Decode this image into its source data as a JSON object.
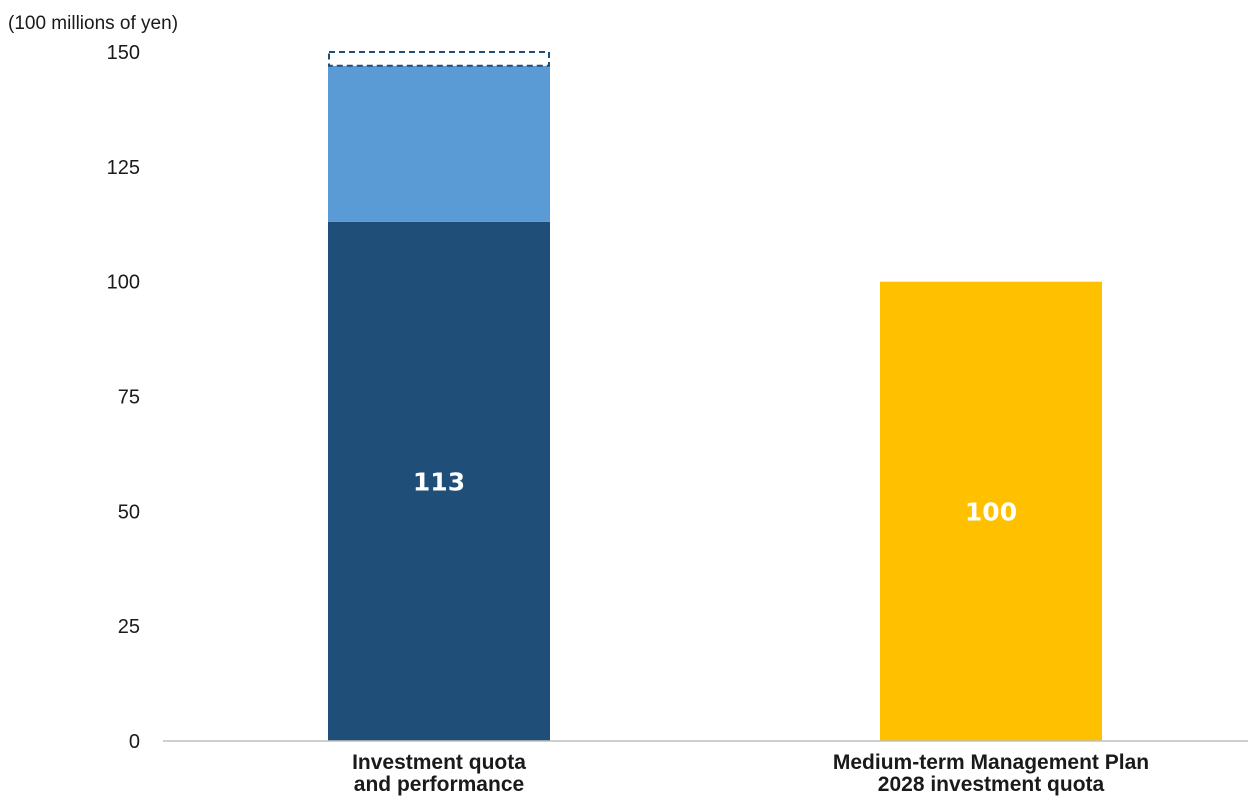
{
  "chart_data": {
    "type": "bar",
    "stacked": true,
    "unit_label": "(100 millions of yen)",
    "ylim": [
      0,
      150
    ],
    "yticks": [
      0,
      25,
      50,
      75,
      100,
      125,
      150
    ],
    "grid": false,
    "legend": "none",
    "categories": [
      [
        "Investment quota",
        "and performance"
      ],
      [
        "Medium-term Management Plan",
        "2028 investment quota"
      ]
    ],
    "series": [
      {
        "color": "#1f4e79",
        "values": [
          113,
          null
        ],
        "label": "113"
      },
      {
        "color": "#5b9bd5",
        "values": [
          34,
          null
        ]
      },
      {
        "color": "#ffffff",
        "border": "#1f4e79",
        "dashed": true,
        "values": [
          3,
          null
        ]
      },
      {
        "color": "#ffc000",
        "values": [
          null,
          100
        ],
        "label": "100"
      }
    ]
  }
}
